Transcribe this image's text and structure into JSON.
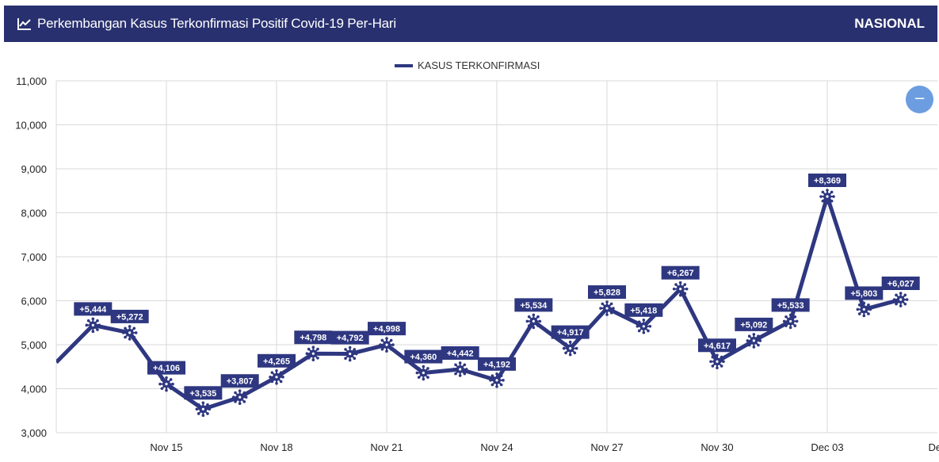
{
  "header": {
    "title": "Perkembangan Kasus Terkonfirmasi Positif Covid-19 Per-Hari",
    "scope": "NASIONAL",
    "icon": "trend-line-icon"
  },
  "zoom_button": {
    "label": "−",
    "icon": "minus-icon"
  },
  "colors": {
    "header_bg": "#28306f",
    "series": "#2e3780",
    "grid": "#d9d9d9",
    "zoom_button": "#6c9de0"
  },
  "chart_data": {
    "type": "line",
    "title": "Perkembangan Kasus Terkonfirmasi Positif Covid-19 Per-Hari",
    "legend_position": "top-center",
    "grid": true,
    "xlabel": "",
    "ylabel": "",
    "ylim": [
      3000,
      11000
    ],
    "yticks": [
      3000,
      4000,
      5000,
      6000,
      7000,
      8000,
      9000,
      10000,
      11000
    ],
    "ytick_labels": [
      "3,000",
      "4,000",
      "5,000",
      "6,000",
      "7,000",
      "8,000",
      "9,000",
      "10,000",
      "11,000"
    ],
    "xlim": [
      "2020-11-12",
      "2020-12-06"
    ],
    "xticks": [
      "2020-11-15",
      "2020-11-18",
      "2020-11-21",
      "2020-11-24",
      "2020-11-27",
      "2020-11-30",
      "2020-12-03",
      "2020-12-06"
    ],
    "xtick_labels": [
      "Nov 15",
      "Nov 18",
      "Nov 21",
      "Nov 24",
      "Nov 27",
      "Nov 30",
      "Dec 03",
      "Dec"
    ],
    "series": [
      {
        "name": "KASUS TERKONFIRMASI",
        "x": [
          "2020-11-12",
          "2020-11-13",
          "2020-11-14",
          "2020-11-15",
          "2020-11-16",
          "2020-11-17",
          "2020-11-18",
          "2020-11-19",
          "2020-11-20",
          "2020-11-21",
          "2020-11-22",
          "2020-11-23",
          "2020-11-24",
          "2020-11-25",
          "2020-11-26",
          "2020-11-27",
          "2020-11-28",
          "2020-11-29",
          "2020-11-30",
          "2020-12-01",
          "2020-12-02",
          "2020-12-03",
          "2020-12-04",
          "2020-12-05"
        ],
        "values": [
          4600,
          5444,
          5272,
          4106,
          3535,
          3807,
          4265,
          4798,
          4792,
          4998,
          4360,
          4442,
          4192,
          5534,
          4917,
          5828,
          5418,
          6267,
          4617,
          5092,
          5533,
          8369,
          5803,
          6027
        ],
        "labels": [
          null,
          "+5,444",
          "+5,272",
          "+4,106",
          "+3,535",
          "+3,807",
          "+4,265",
          "+4,798",
          "+4,792",
          "+4,998",
          "+4,360",
          "+4,442",
          "+4,192",
          "+5,534",
          "+4,917",
          "+5,828",
          "+5,418",
          "+6,267",
          "+4,617",
          "+5,092",
          "+5,533",
          "+8,369",
          "+5,803",
          "+6,027"
        ]
      }
    ]
  }
}
